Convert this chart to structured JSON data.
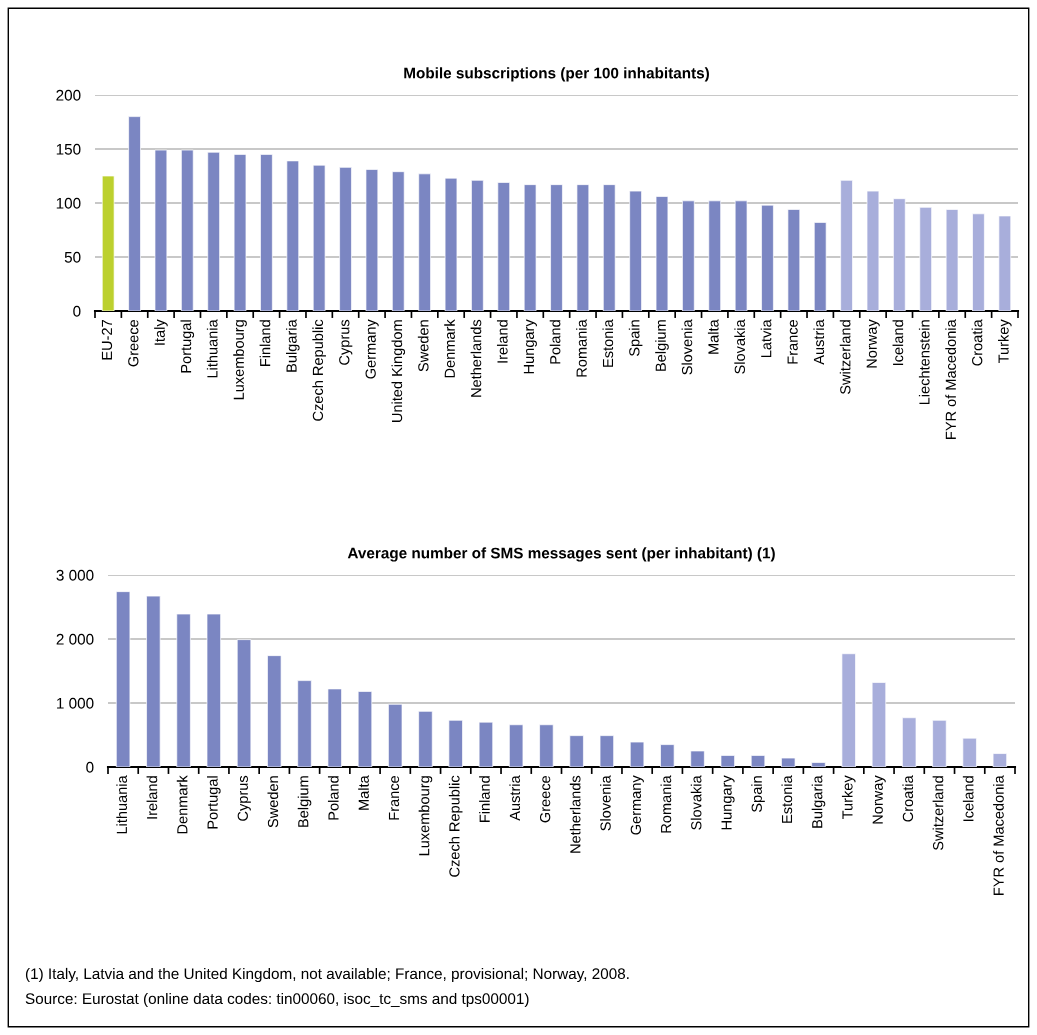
{
  "chart_data": [
    {
      "type": "bar",
      "title": "Mobile subscriptions (per 100 inhabitants)",
      "categories": [
        "EU-27",
        "Greece",
        "Italy",
        "Portugal",
        "Lithuania",
        "Luxembourg",
        "Finland",
        "Bulgaria",
        "Czech Republic",
        "Cyprus",
        "Germany",
        "United Kingdom",
        "Sweden",
        "Denmark",
        "Netherlands",
        "Ireland",
        "Hungary",
        "Poland",
        "Romania",
        "Estonia",
        "Spain",
        "Belgium",
        "Slovenia",
        "Malta",
        "Slovakia",
        "Latvia",
        "France",
        "Austria",
        "Switzerland",
        "Norway",
        "Iceland",
        "Liechtenstein",
        "FYR of Macedonia",
        "Croatia",
        "Turkey"
      ],
      "values": [
        125,
        180,
        149,
        149,
        147,
        145,
        145,
        139,
        135,
        133,
        131,
        129,
        127,
        123,
        121,
        119,
        117,
        117,
        117,
        117,
        111,
        106,
        102,
        102,
        102,
        98,
        94,
        82,
        121,
        111,
        104,
        96,
        94,
        90,
        88
      ],
      "colors": [
        "#bcd02e",
        "#7b86c2",
        "#7b86c2",
        "#7b86c2",
        "#7b86c2",
        "#7b86c2",
        "#7b86c2",
        "#7b86c2",
        "#7b86c2",
        "#7b86c2",
        "#7b86c2",
        "#7b86c2",
        "#7b86c2",
        "#7b86c2",
        "#7b86c2",
        "#7b86c2",
        "#7b86c2",
        "#7b86c2",
        "#7b86c2",
        "#7b86c2",
        "#7b86c2",
        "#7b86c2",
        "#7b86c2",
        "#7b86c2",
        "#7b86c2",
        "#7b86c2",
        "#7b86c2",
        "#7b86c2",
        "#a8aedb",
        "#a8aedb",
        "#a8aedb",
        "#a8aedb",
        "#a8aedb",
        "#a8aedb",
        "#a8aedb"
      ],
      "ylim": [
        0,
        200
      ],
      "yticks": [
        0,
        50,
        100,
        150,
        200
      ],
      "grid": "y",
      "legend": false
    },
    {
      "type": "bar",
      "title": "Average number of SMS messages sent (per inhabitant) (1)",
      "categories": [
        "Lithuania",
        "Ireland",
        "Denmark",
        "Portugal",
        "Cyprus",
        "Sweden",
        "Belgium",
        "Poland",
        "Malta",
        "France",
        "Luxembourg",
        "Czech Republic",
        "Finland",
        "Austria",
        "Greece",
        "Netherlands",
        "Slovenia",
        "Germany",
        "Romania",
        "Slovakia",
        "Hungary",
        "Spain",
        "Estonia",
        "Bulgaria",
        "Turkey",
        "Norway",
        "Croatia",
        "Switzerland",
        "Iceland",
        "FYR of Macedonia"
      ],
      "values": [
        2740,
        2670,
        2390,
        2390,
        1990,
        1740,
        1350,
        1220,
        1180,
        980,
        870,
        730,
        700,
        660,
        660,
        490,
        490,
        390,
        350,
        250,
        180,
        180,
        140,
        70,
        1770,
        1320,
        770,
        730,
        450,
        210
      ],
      "colors": [
        "#7b86c2",
        "#7b86c2",
        "#7b86c2",
        "#7b86c2",
        "#7b86c2",
        "#7b86c2",
        "#7b86c2",
        "#7b86c2",
        "#7b86c2",
        "#7b86c2",
        "#7b86c2",
        "#7b86c2",
        "#7b86c2",
        "#7b86c2",
        "#7b86c2",
        "#7b86c2",
        "#7b86c2",
        "#7b86c2",
        "#7b86c2",
        "#7b86c2",
        "#7b86c2",
        "#7b86c2",
        "#7b86c2",
        "#7b86c2",
        "#a8aedb",
        "#a8aedb",
        "#a8aedb",
        "#a8aedb",
        "#a8aedb",
        "#a8aedb"
      ],
      "ylim": [
        0,
        3000
      ],
      "yticks": [
        0,
        {
          "value": 1000,
          "label": "1 000"
        },
        {
          "value": 2000,
          "label": "2 000"
        },
        {
          "value": 3000,
          "label": "3 000"
        }
      ],
      "grid": "y",
      "legend": false,
      "annotations": [
        "(1) Italy, Latvia and the United Kingdom, not available; France, provisional; Norway, 2008.",
        "Source: Eurostat (online data codes: tin00060, isoc_tc_sms and tps00001)"
      ]
    }
  ]
}
